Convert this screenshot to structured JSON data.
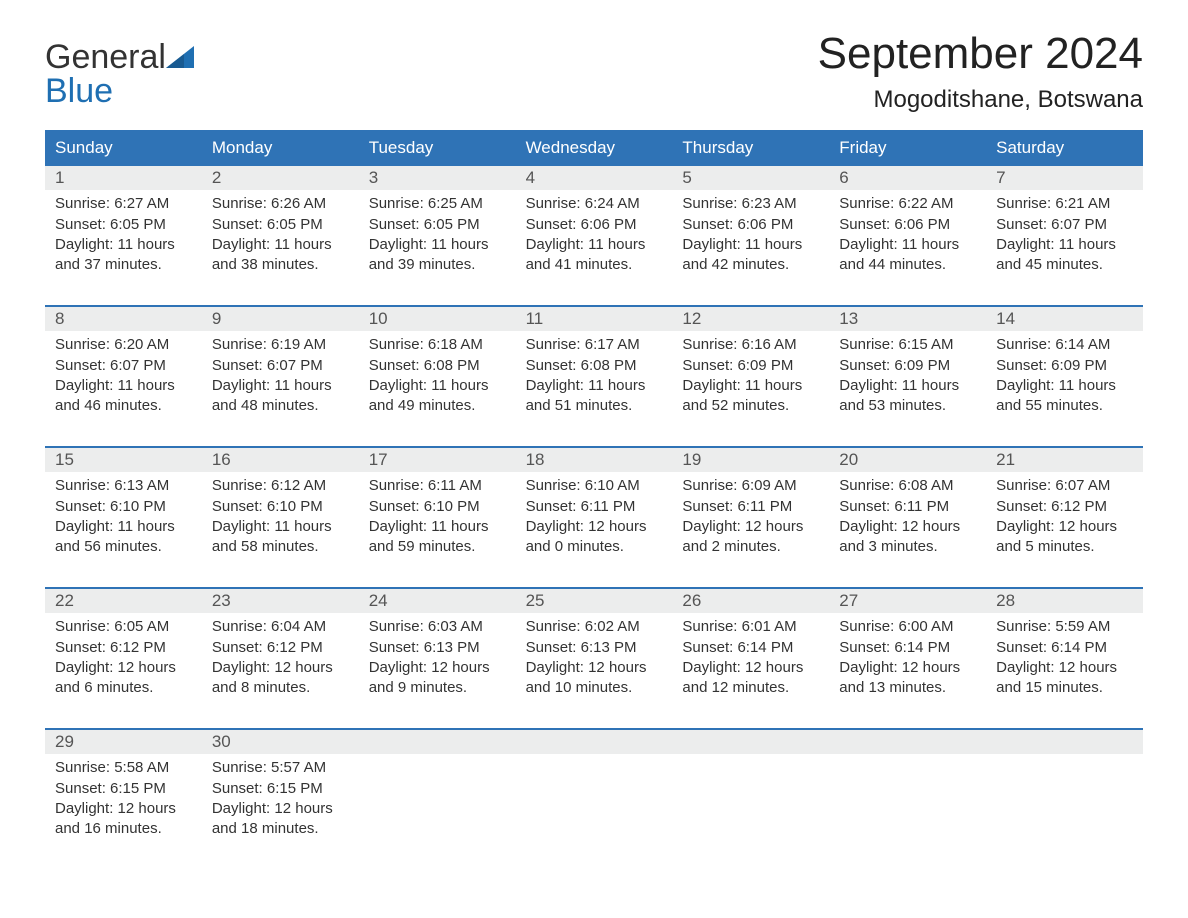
{
  "logo": {
    "text_general": "General",
    "text_blue": "Blue",
    "flag_color": "#1f6fb2",
    "general_color": "#333333",
    "blue_color": "#1f6fb2"
  },
  "header": {
    "month_title": "September 2024",
    "location": "Mogoditshane, Botswana"
  },
  "colors": {
    "header_bg": "#2f73b6",
    "header_text": "#ffffff",
    "row_accent": "#2f73b6",
    "daynum_bg": "#eceded",
    "daynum_text": "#555555",
    "body_text": "#333333",
    "page_bg": "#ffffff"
  },
  "typography": {
    "month_title_fontsize": 44,
    "location_fontsize": 24,
    "weekday_fontsize": 17,
    "daynum_fontsize": 17,
    "body_fontsize": 15,
    "font_family": "Arial"
  },
  "layout": {
    "columns": 7,
    "rows": 5,
    "cell_min_height": 120
  },
  "weekdays": [
    "Sunday",
    "Monday",
    "Tuesday",
    "Wednesday",
    "Thursday",
    "Friday",
    "Saturday"
  ],
  "weeks": [
    [
      {
        "day": "1",
        "sunrise": "Sunrise: 6:27 AM",
        "sunset": "Sunset: 6:05 PM",
        "daylight1": "Daylight: 11 hours",
        "daylight2": "and 37 minutes."
      },
      {
        "day": "2",
        "sunrise": "Sunrise: 6:26 AM",
        "sunset": "Sunset: 6:05 PM",
        "daylight1": "Daylight: 11 hours",
        "daylight2": "and 38 minutes."
      },
      {
        "day": "3",
        "sunrise": "Sunrise: 6:25 AM",
        "sunset": "Sunset: 6:05 PM",
        "daylight1": "Daylight: 11 hours",
        "daylight2": "and 39 minutes."
      },
      {
        "day": "4",
        "sunrise": "Sunrise: 6:24 AM",
        "sunset": "Sunset: 6:06 PM",
        "daylight1": "Daylight: 11 hours",
        "daylight2": "and 41 minutes."
      },
      {
        "day": "5",
        "sunrise": "Sunrise: 6:23 AM",
        "sunset": "Sunset: 6:06 PM",
        "daylight1": "Daylight: 11 hours",
        "daylight2": "and 42 minutes."
      },
      {
        "day": "6",
        "sunrise": "Sunrise: 6:22 AM",
        "sunset": "Sunset: 6:06 PM",
        "daylight1": "Daylight: 11 hours",
        "daylight2": "and 44 minutes."
      },
      {
        "day": "7",
        "sunrise": "Sunrise: 6:21 AM",
        "sunset": "Sunset: 6:07 PM",
        "daylight1": "Daylight: 11 hours",
        "daylight2": "and 45 minutes."
      }
    ],
    [
      {
        "day": "8",
        "sunrise": "Sunrise: 6:20 AM",
        "sunset": "Sunset: 6:07 PM",
        "daylight1": "Daylight: 11 hours",
        "daylight2": "and 46 minutes."
      },
      {
        "day": "9",
        "sunrise": "Sunrise: 6:19 AM",
        "sunset": "Sunset: 6:07 PM",
        "daylight1": "Daylight: 11 hours",
        "daylight2": "and 48 minutes."
      },
      {
        "day": "10",
        "sunrise": "Sunrise: 6:18 AM",
        "sunset": "Sunset: 6:08 PM",
        "daylight1": "Daylight: 11 hours",
        "daylight2": "and 49 minutes."
      },
      {
        "day": "11",
        "sunrise": "Sunrise: 6:17 AM",
        "sunset": "Sunset: 6:08 PM",
        "daylight1": "Daylight: 11 hours",
        "daylight2": "and 51 minutes."
      },
      {
        "day": "12",
        "sunrise": "Sunrise: 6:16 AM",
        "sunset": "Sunset: 6:09 PM",
        "daylight1": "Daylight: 11 hours",
        "daylight2": "and 52 minutes."
      },
      {
        "day": "13",
        "sunrise": "Sunrise: 6:15 AM",
        "sunset": "Sunset: 6:09 PM",
        "daylight1": "Daylight: 11 hours",
        "daylight2": "and 53 minutes."
      },
      {
        "day": "14",
        "sunrise": "Sunrise: 6:14 AM",
        "sunset": "Sunset: 6:09 PM",
        "daylight1": "Daylight: 11 hours",
        "daylight2": "and 55 minutes."
      }
    ],
    [
      {
        "day": "15",
        "sunrise": "Sunrise: 6:13 AM",
        "sunset": "Sunset: 6:10 PM",
        "daylight1": "Daylight: 11 hours",
        "daylight2": "and 56 minutes."
      },
      {
        "day": "16",
        "sunrise": "Sunrise: 6:12 AM",
        "sunset": "Sunset: 6:10 PM",
        "daylight1": "Daylight: 11 hours",
        "daylight2": "and 58 minutes."
      },
      {
        "day": "17",
        "sunrise": "Sunrise: 6:11 AM",
        "sunset": "Sunset: 6:10 PM",
        "daylight1": "Daylight: 11 hours",
        "daylight2": "and 59 minutes."
      },
      {
        "day": "18",
        "sunrise": "Sunrise: 6:10 AM",
        "sunset": "Sunset: 6:11 PM",
        "daylight1": "Daylight: 12 hours",
        "daylight2": "and 0 minutes."
      },
      {
        "day": "19",
        "sunrise": "Sunrise: 6:09 AM",
        "sunset": "Sunset: 6:11 PM",
        "daylight1": "Daylight: 12 hours",
        "daylight2": "and 2 minutes."
      },
      {
        "day": "20",
        "sunrise": "Sunrise: 6:08 AM",
        "sunset": "Sunset: 6:11 PM",
        "daylight1": "Daylight: 12 hours",
        "daylight2": "and 3 minutes."
      },
      {
        "day": "21",
        "sunrise": "Sunrise: 6:07 AM",
        "sunset": "Sunset: 6:12 PM",
        "daylight1": "Daylight: 12 hours",
        "daylight2": "and 5 minutes."
      }
    ],
    [
      {
        "day": "22",
        "sunrise": "Sunrise: 6:05 AM",
        "sunset": "Sunset: 6:12 PM",
        "daylight1": "Daylight: 12 hours",
        "daylight2": "and 6 minutes."
      },
      {
        "day": "23",
        "sunrise": "Sunrise: 6:04 AM",
        "sunset": "Sunset: 6:12 PM",
        "daylight1": "Daylight: 12 hours",
        "daylight2": "and 8 minutes."
      },
      {
        "day": "24",
        "sunrise": "Sunrise: 6:03 AM",
        "sunset": "Sunset: 6:13 PM",
        "daylight1": "Daylight: 12 hours",
        "daylight2": "and 9 minutes."
      },
      {
        "day": "25",
        "sunrise": "Sunrise: 6:02 AM",
        "sunset": "Sunset: 6:13 PM",
        "daylight1": "Daylight: 12 hours",
        "daylight2": "and 10 minutes."
      },
      {
        "day": "26",
        "sunrise": "Sunrise: 6:01 AM",
        "sunset": "Sunset: 6:14 PM",
        "daylight1": "Daylight: 12 hours",
        "daylight2": "and 12 minutes."
      },
      {
        "day": "27",
        "sunrise": "Sunrise: 6:00 AM",
        "sunset": "Sunset: 6:14 PM",
        "daylight1": "Daylight: 12 hours",
        "daylight2": "and 13 minutes."
      },
      {
        "day": "28",
        "sunrise": "Sunrise: 5:59 AM",
        "sunset": "Sunset: 6:14 PM",
        "daylight1": "Daylight: 12 hours",
        "daylight2": "and 15 minutes."
      }
    ],
    [
      {
        "day": "29",
        "sunrise": "Sunrise: 5:58 AM",
        "sunset": "Sunset: 6:15 PM",
        "daylight1": "Daylight: 12 hours",
        "daylight2": "and 16 minutes."
      },
      {
        "day": "30",
        "sunrise": "Sunrise: 5:57 AM",
        "sunset": "Sunset: 6:15 PM",
        "daylight1": "Daylight: 12 hours",
        "daylight2": "and 18 minutes."
      },
      {
        "day": "",
        "sunrise": "",
        "sunset": "",
        "daylight1": "",
        "daylight2": ""
      },
      {
        "day": "",
        "sunrise": "",
        "sunset": "",
        "daylight1": "",
        "daylight2": ""
      },
      {
        "day": "",
        "sunrise": "",
        "sunset": "",
        "daylight1": "",
        "daylight2": ""
      },
      {
        "day": "",
        "sunrise": "",
        "sunset": "",
        "daylight1": "",
        "daylight2": ""
      },
      {
        "day": "",
        "sunrise": "",
        "sunset": "",
        "daylight1": "",
        "daylight2": ""
      }
    ]
  ]
}
